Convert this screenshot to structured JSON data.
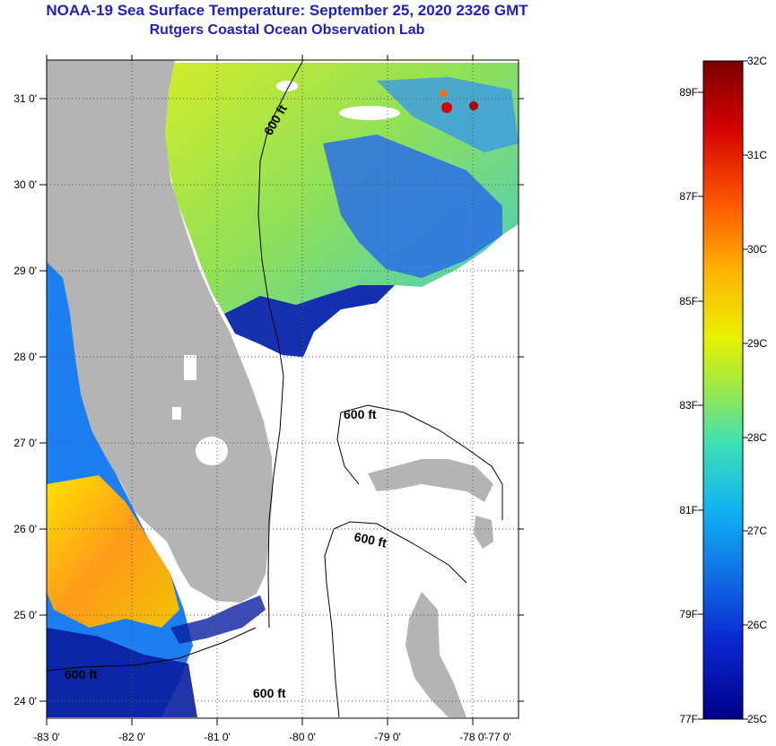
{
  "header": {
    "title": "NOAA-19 Sea Surface Temperature:  September 25, 2020 2326 GMT",
    "subtitle": "Rutgers Coastal Ocean Observation Lab"
  },
  "map": {
    "longitude_labels": [
      "-83 0'",
      "-82 0'",
      "-81 0'",
      "-80 0'",
      "-79 0'",
      "-78 0'",
      "-77 0'"
    ],
    "latitude_labels": [
      "31 0'",
      "30 0'",
      "29 0'",
      "28 0'",
      "27 0'",
      "26 0'",
      "25 0'",
      "24 0'"
    ],
    "contour_labels": [
      "600 ft",
      "600 ft",
      "600 ft",
      "600 ft",
      "600 ft"
    ],
    "colors": {
      "land": "#b4b4b4",
      "nodata": "#ffffff",
      "grid": "#555555"
    }
  },
  "colorbar": {
    "celsius_labels": [
      "32C",
      "31C",
      "30C",
      "29C",
      "28C",
      "27C",
      "26C",
      "25C"
    ],
    "fahrenheit_labels": [
      "89F",
      "87F",
      "85F",
      "83F",
      "81F",
      "79F",
      "77F"
    ],
    "celsius_range": [
      25,
      32
    ],
    "fahrenheit_range": [
      77,
      89
    ]
  }
}
